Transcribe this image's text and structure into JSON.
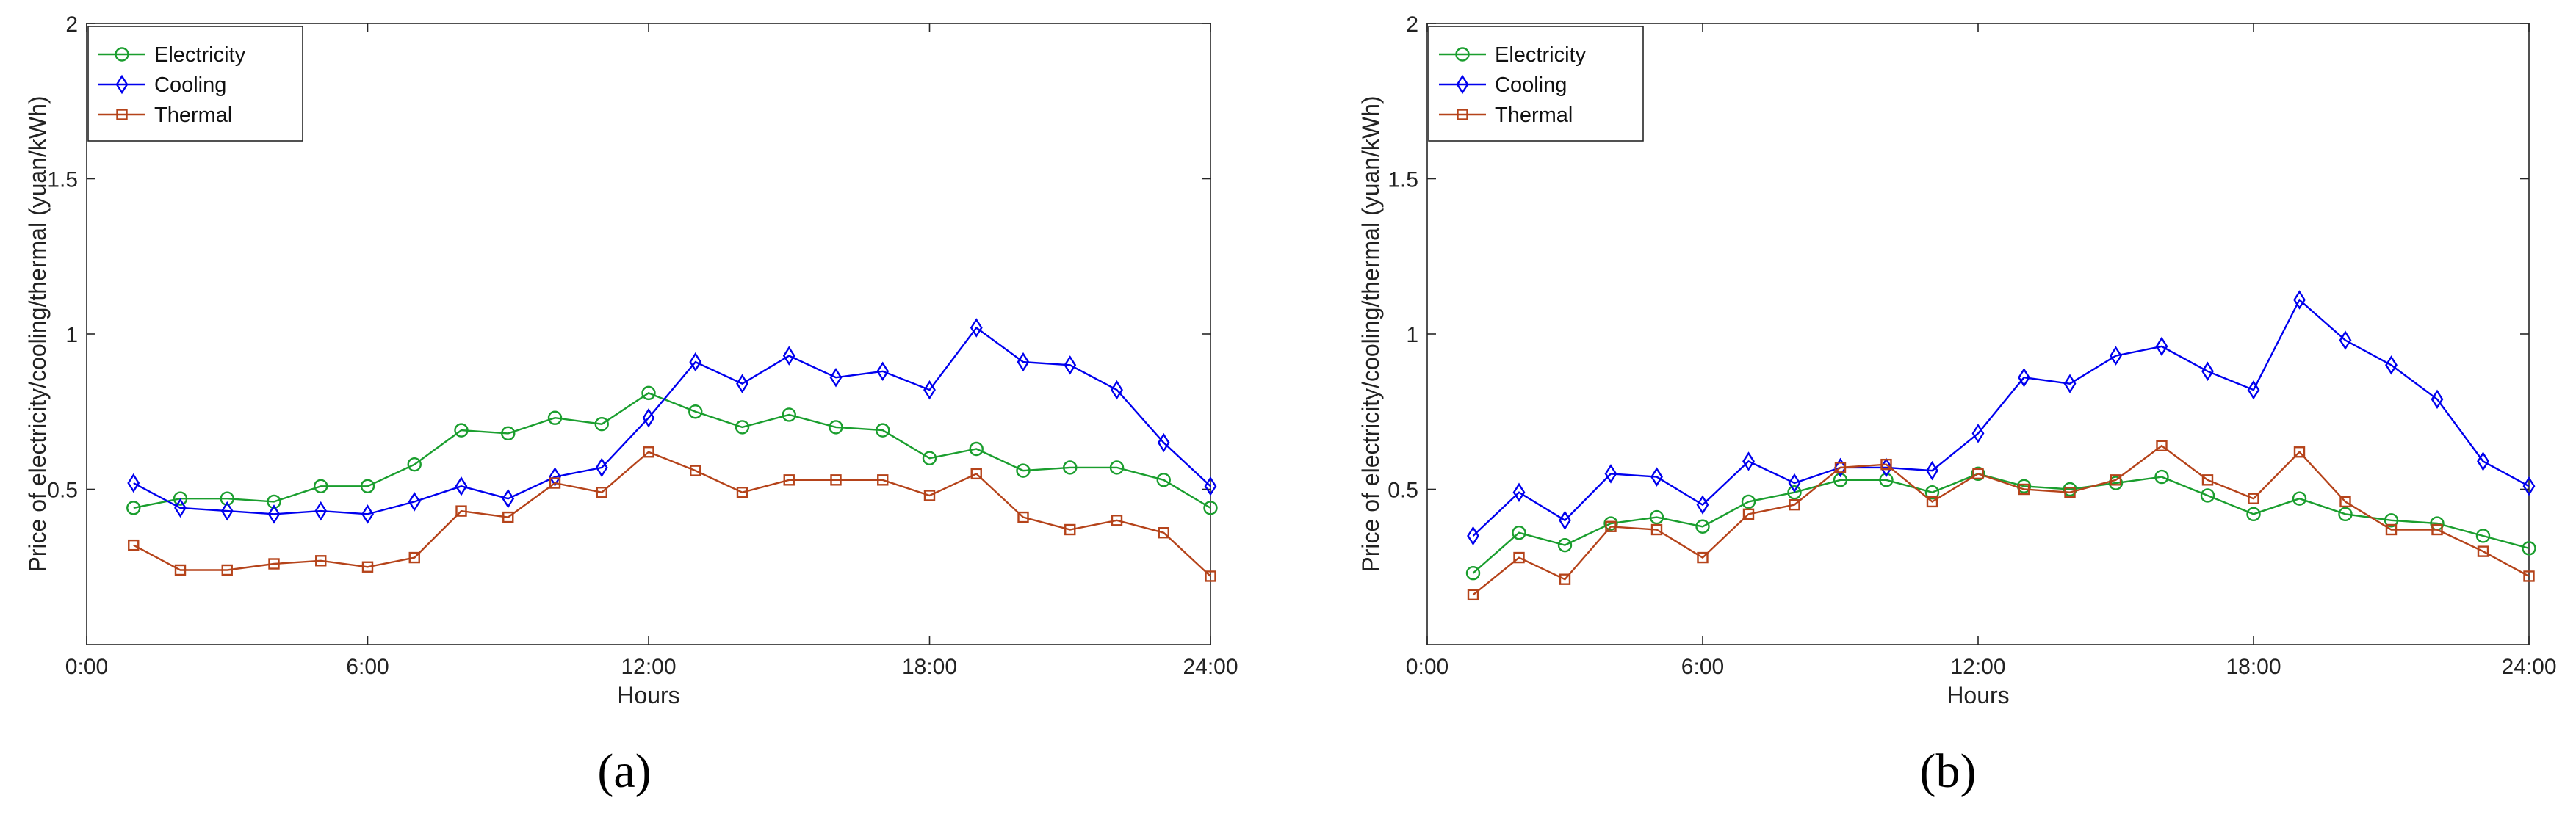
{
  "figure": {
    "panel_labels": [
      "(a)",
      "(b)"
    ]
  },
  "chart_data": [
    {
      "type": "line",
      "panel_label": "(a)",
      "title": "",
      "xlabel": "Hours",
      "ylabel": "Price of electricity/cooling/thermal (yuan/kWh)",
      "xlim": [
        0,
        24
      ],
      "ylim": [
        0,
        2
      ],
      "xticks": [
        0,
        6,
        12,
        18,
        24
      ],
      "xtick_labels": [
        "0:00",
        "6:00",
        "12:00",
        "18:00",
        "24:00"
      ],
      "yticks": [
        0.5,
        1,
        1.5,
        2
      ],
      "ytick_labels": [
        "0.5",
        "1",
        "1.5",
        "2"
      ],
      "grid": false,
      "legend_position": "top-left",
      "x": [
        1,
        2,
        3,
        4,
        5,
        6,
        7,
        8,
        9,
        10,
        11,
        12,
        13,
        14,
        15,
        16,
        17,
        18,
        19,
        20,
        21,
        22,
        23,
        24
      ],
      "series": [
        {
          "name": "Electricity",
          "color": "#1a9e2e",
          "marker": "circle",
          "values": [
            0.44,
            0.47,
            0.47,
            0.46,
            0.51,
            0.51,
            0.58,
            0.69,
            0.68,
            0.73,
            0.71,
            0.81,
            0.75,
            0.7,
            0.74,
            0.7,
            0.69,
            0.6,
            0.63,
            0.56,
            0.57,
            0.57,
            0.53,
            0.44
          ]
        },
        {
          "name": "Cooling",
          "color": "#0000ee",
          "marker": "diamond",
          "values": [
            0.52,
            0.44,
            0.43,
            0.42,
            0.43,
            0.42,
            0.46,
            0.51,
            0.47,
            0.54,
            0.57,
            0.73,
            0.91,
            0.84,
            0.93,
            0.86,
            0.88,
            0.82,
            1.02,
            0.91,
            0.9,
            0.82,
            0.65,
            0.51
          ]
        },
        {
          "name": "Thermal",
          "color": "#b5431a",
          "marker": "square",
          "values": [
            0.32,
            0.24,
            0.24,
            0.26,
            0.27,
            0.25,
            0.28,
            0.43,
            0.41,
            0.52,
            0.49,
            0.62,
            0.56,
            0.49,
            0.53,
            0.53,
            0.53,
            0.48,
            0.55,
            0.41,
            0.37,
            0.4,
            0.36,
            0.22
          ]
        }
      ]
    },
    {
      "type": "line",
      "panel_label": "(b)",
      "title": "",
      "xlabel": "Hours",
      "ylabel": "Price of electricity/cooling/thermal (yuan/kWh)",
      "xlim": [
        0,
        24
      ],
      "ylim": [
        0,
        2
      ],
      "xticks": [
        0,
        6,
        12,
        18,
        24
      ],
      "xtick_labels": [
        "0:00",
        "6:00",
        "12:00",
        "18:00",
        "24:00"
      ],
      "yticks": [
        0.5,
        1,
        1.5,
        2
      ],
      "ytick_labels": [
        "0.5",
        "1",
        "1.5",
        "2"
      ],
      "grid": false,
      "legend_position": "top-left",
      "x": [
        1,
        2,
        3,
        4,
        5,
        6,
        7,
        8,
        9,
        10,
        11,
        12,
        13,
        14,
        15,
        16,
        17,
        18,
        19,
        20,
        21,
        22,
        23,
        24
      ],
      "series": [
        {
          "name": "Electricity",
          "color": "#1a9e2e",
          "marker": "circle",
          "values": [
            0.23,
            0.36,
            0.32,
            0.39,
            0.41,
            0.38,
            0.46,
            0.49,
            0.53,
            0.53,
            0.49,
            0.55,
            0.51,
            0.5,
            0.52,
            0.54,
            0.48,
            0.42,
            0.47,
            0.42,
            0.4,
            0.39,
            0.35,
            0.31
          ]
        },
        {
          "name": "Cooling",
          "color": "#0000ee",
          "marker": "diamond",
          "values": [
            0.35,
            0.49,
            0.4,
            0.55,
            0.54,
            0.45,
            0.59,
            0.52,
            0.57,
            0.57,
            0.56,
            0.68,
            0.86,
            0.84,
            0.93,
            0.96,
            0.88,
            0.82,
            1.11,
            0.98,
            0.9,
            0.79,
            0.59,
            0.51
          ]
        },
        {
          "name": "Thermal",
          "color": "#b5431a",
          "marker": "square",
          "values": [
            0.16,
            0.28,
            0.21,
            0.38,
            0.37,
            0.28,
            0.42,
            0.45,
            0.57,
            0.58,
            0.46,
            0.55,
            0.5,
            0.49,
            0.53,
            0.64,
            0.53,
            0.47,
            0.62,
            0.46,
            0.37,
            0.37,
            0.3,
            0.22
          ]
        }
      ]
    }
  ]
}
